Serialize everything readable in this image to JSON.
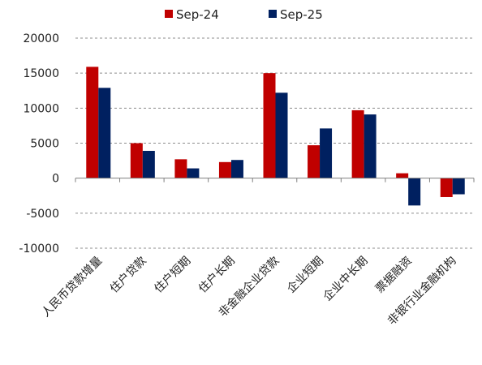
{
  "chart_data": {
    "type": "bar",
    "title": "",
    "xlabel": "",
    "ylabel": "",
    "categories": [
      "人民币贷款增量",
      "住户贷款",
      "住户短期",
      "住户长期",
      "非金融企业贷款",
      "企业短期",
      "企业中长期",
      "票据融资",
      "非银行业金融机构"
    ],
    "series": [
      {
        "name": "Sep-24",
        "color": "#C00000",
        "values": [
          15900,
          5000,
          2700,
          2300,
          15000,
          4700,
          9700,
          700,
          -2700
        ]
      },
      {
        "name": "Sep-25",
        "color": "#002060",
        "values": [
          12900,
          3900,
          1400,
          2600,
          12200,
          7100,
          9100,
          -3900,
          -2300
        ]
      }
    ],
    "ylim": [
      -10000,
      20000
    ],
    "yticks": [
      -10000,
      -5000,
      0,
      5000,
      10000,
      15000,
      20000
    ],
    "ytick_labels": [
      "-10000",
      "-5000",
      "0",
      "5000",
      "10000",
      "15000",
      "20000"
    ],
    "grid": "horizontal dashed",
    "legend_position": "top"
  }
}
